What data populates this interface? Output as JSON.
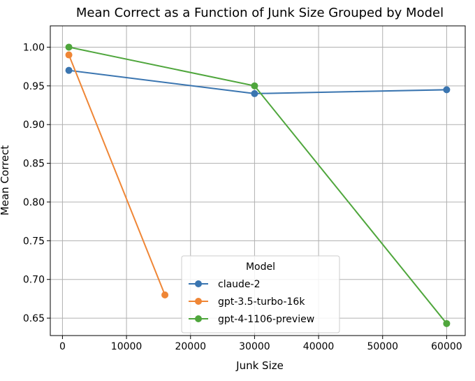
{
  "chart_data": {
    "type": "line",
    "title": "Mean Correct as a Function of Junk Size Grouped by Model",
    "xlabel": "Junk Size",
    "ylabel": "Mean Correct",
    "xlim": [
      -1900,
      62900
    ],
    "ylim": [
      0.6275,
      1.0275
    ],
    "xticks": [
      0,
      10000,
      20000,
      30000,
      40000,
      50000,
      60000
    ],
    "xtick_labels": [
      "0",
      "10000",
      "20000",
      "30000",
      "40000",
      "50000",
      "60000"
    ],
    "yticks": [
      0.65,
      0.7,
      0.75,
      0.8,
      0.85,
      0.9,
      0.95,
      1.0
    ],
    "ytick_labels": [
      "0.65",
      "0.70",
      "0.75",
      "0.80",
      "0.85",
      "0.90",
      "0.95",
      "1.00"
    ],
    "grid": true,
    "legend": {
      "title": "Model",
      "position": "lower-center"
    },
    "series": [
      {
        "name": "claude-2",
        "color": "#3a75b0",
        "x": [
          1000,
          30000,
          60000
        ],
        "y": [
          0.97,
          0.94,
          0.945
        ]
      },
      {
        "name": "gpt-3.5-turbo-16k",
        "color": "#ef8636",
        "x": [
          1000,
          16000
        ],
        "y": [
          0.99,
          0.68
        ]
      },
      {
        "name": "gpt-4-1106-preview",
        "color": "#4fa63c",
        "x": [
          1000,
          30000,
          60000
        ],
        "y": [
          1.0,
          0.95,
          0.643
        ]
      }
    ]
  }
}
